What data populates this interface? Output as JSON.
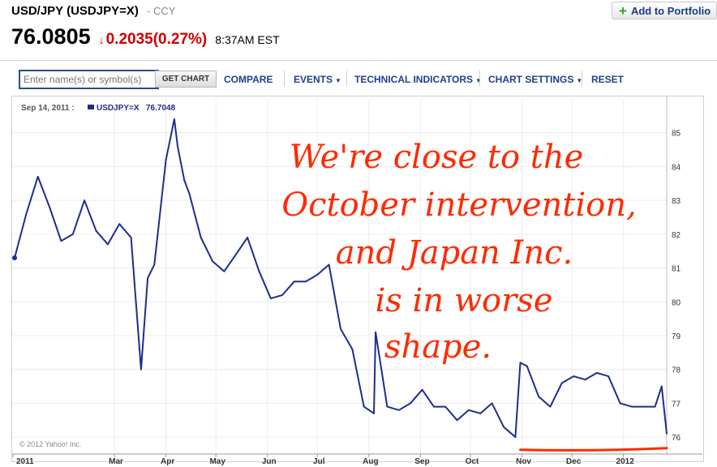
{
  "header": {
    "title": "USD/JPY (USDJPY=X)",
    "type_label": "- CCY",
    "price": "76.0805",
    "change": "0.2035(0.27%)",
    "time": "8:37AM EST",
    "add_button": "Add to Portfolio",
    "colors": {
      "down": "#cc0000",
      "link": "#1e3f8e"
    }
  },
  "toolbar": {
    "search_placeholder": "Enter name(s) or symbol(s)",
    "get_chart": "GET CHART",
    "compare": "COMPARE",
    "events": "EVENTS",
    "technical_indicators": "TECHNICAL INDICATORS",
    "chart_settings": "CHART SETTINGS",
    "reset": "RESET"
  },
  "chart_data": {
    "type": "line",
    "legend_date": "Sep 14, 2011 :",
    "legend_symbol": "USDJPY=X",
    "legend_value": "76.7048",
    "series": [
      {
        "name": "USDJPY=X",
        "color": "#1c2e8c",
        "x": [
          "2010-12-31",
          "2011-01-07",
          "2011-01-14",
          "2011-01-21",
          "2011-01-28",
          "2011-02-04",
          "2011-02-11",
          "2011-02-18",
          "2011-02-25",
          "2011-03-04",
          "2011-03-11",
          "2011-03-17",
          "2011-03-21",
          "2011-03-25",
          "2011-04-01",
          "2011-04-06",
          "2011-04-08",
          "2011-04-12",
          "2011-04-15",
          "2011-04-22",
          "2011-04-29",
          "2011-05-06",
          "2011-05-13",
          "2011-05-20",
          "2011-05-27",
          "2011-06-03",
          "2011-06-10",
          "2011-06-17",
          "2011-06-24",
          "2011-07-01",
          "2011-07-08",
          "2011-07-15",
          "2011-07-22",
          "2011-07-29",
          "2011-08-04",
          "2011-08-05",
          "2011-08-12",
          "2011-08-19",
          "2011-08-26",
          "2011-09-02",
          "2011-09-09",
          "2011-09-16",
          "2011-09-23",
          "2011-09-30",
          "2011-10-07",
          "2011-10-14",
          "2011-10-21",
          "2011-10-28",
          "2011-10-31",
          "2011-11-04",
          "2011-11-11",
          "2011-11-18",
          "2011-11-25",
          "2011-12-02",
          "2011-12-09",
          "2011-12-16",
          "2011-12-23",
          "2011-12-30",
          "2012-01-06",
          "2012-01-13",
          "2012-01-20",
          "2012-01-24",
          "2012-01-27"
        ],
        "values": [
          81.3,
          82.6,
          83.7,
          82.8,
          81.8,
          82.0,
          83.0,
          82.1,
          81.7,
          82.3,
          81.9,
          78.0,
          80.7,
          81.1,
          84.2,
          85.4,
          84.6,
          83.6,
          83.2,
          81.9,
          81.2,
          80.9,
          81.4,
          81.9,
          80.9,
          80.1,
          80.2,
          80.6,
          80.6,
          80.8,
          81.1,
          79.2,
          78.6,
          76.9,
          76.7,
          79.1,
          76.9,
          76.8,
          77.0,
          77.4,
          76.9,
          76.9,
          76.5,
          76.8,
          76.7,
          77.0,
          76.3,
          76.0,
          78.2,
          78.1,
          77.2,
          76.9,
          77.6,
          77.8,
          77.7,
          77.9,
          77.8,
          77.0,
          76.9,
          76.9,
          76.9,
          77.5,
          76.1
        ],
        "annotation": "marker line at the low of ~75.7 from Nov 2011 to Jan 2012"
      }
    ],
    "y_ticks": [
      "76",
      "77",
      "78",
      "79",
      "80",
      "81",
      "82",
      "83",
      "84",
      "85"
    ],
    "x_ticks": [
      "2011",
      "Mar",
      "Apr",
      "May",
      "Jun",
      "Jul",
      "Aug",
      "Sep",
      "Oct",
      "Nov",
      "Dec",
      "2012"
    ],
    "ylim": [
      75.5,
      86.0
    ],
    "xlim": [
      "2010-12-31",
      "2012-01-27"
    ],
    "grid": true,
    "copyright": "© 2012 Yahoo! Inc.",
    "annotation_lines": [
      "We're close to the",
      "October intervention,",
      "and Japan Inc.",
      "is in worse",
      "shape."
    ],
    "annotation_color": "#ff2a00"
  }
}
